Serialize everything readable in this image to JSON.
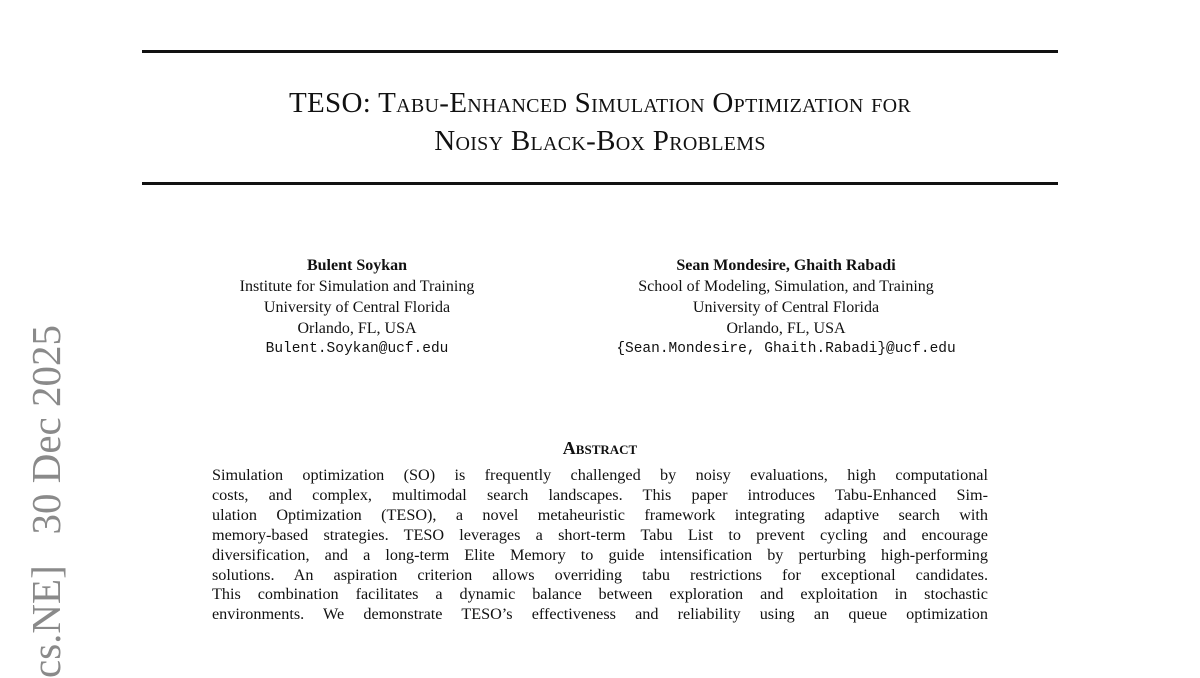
{
  "sidebar": {
    "arxiv_stamp": "cs.NE]   30 Dec 2025"
  },
  "title": {
    "line1": "TESO: Tabu-Enhanced Simulation Optimization for",
    "line2": "Noisy Black-Box Problems"
  },
  "authors": [
    {
      "name": "Bulent Soykan",
      "affiliation": [
        "Institute for Simulation and Training",
        "University of Central Florida",
        "Orlando, FL, USA"
      ],
      "email": "Bulent.Soykan@ucf.edu"
    },
    {
      "name": "Sean Mondesire, Ghaith Rabadi",
      "affiliation": [
        "School of Modeling, Simulation, and Training",
        "University of Central Florida",
        "Orlando, FL, USA"
      ],
      "email": "{Sean.Mondesire, Ghaith.Rabadi}@ucf.edu"
    }
  ],
  "abstract": {
    "heading": "Abstract",
    "lines": [
      "Simulation optimization (SO) is frequently challenged by noisy evaluations, high computational",
      "costs, and complex, multimodal search landscapes.  This paper introduces Tabu-Enhanced Sim-",
      "ulation Optimization (TESO), a novel metaheuristic framework integrating adaptive search with",
      "memory-based strategies. TESO leverages a short-term Tabu List to prevent cycling and encourage",
      "diversification, and a long-term Elite Memory to guide intensification by perturbing high-performing",
      "solutions.  An aspiration criterion allows overriding tabu restrictions for exceptional candidates.",
      "This combination facilitates a dynamic balance between exploration and exploitation in stochastic",
      "environments.  We demonstrate TESO’s effectiveness and reliability using an queue optimization"
    ]
  }
}
